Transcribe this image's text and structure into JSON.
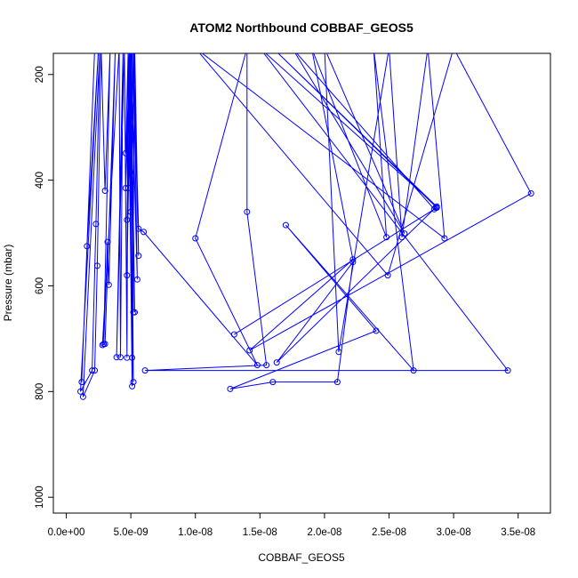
{
  "chart_data": {
    "type": "scatter",
    "connected": true,
    "title": "ATOM2 Northbound COBBAF_GEOS5",
    "xlabel": "COBBAF_GEOS5",
    "ylabel": "Pressure (mbar)",
    "xlim": [
      -1e-09,
      3.75e-08
    ],
    "ylim": [
      1030,
      160
    ],
    "y_reversed": true,
    "x_ticks": [
      0,
      5e-09,
      1e-08,
      1.5e-08,
      2e-08,
      2.5e-08,
      3e-08,
      3.5e-08
    ],
    "x_tick_labels": [
      "0.0e+00",
      "5.0e-09",
      "1.0e-08",
      "1.5e-08",
      "2.0e-08",
      "2.5e-08",
      "3.0e-08",
      "3.5e-08"
    ],
    "y_ticks": [
      200,
      400,
      600,
      800,
      1000
    ],
    "y_tick_labels": [
      "200",
      "400",
      "600",
      "800",
      "1000"
    ],
    "grid": false,
    "legend": "none",
    "colors": {
      "series": "#0000ff",
      "axis": "#000000",
      "text": "#000000",
      "background": "#ffffff"
    },
    "series": [
      {
        "points": [
          [
            1.2e-09,
            782
          ],
          [
            2.2e-09,
            150
          ],
          [
            1.6e-09,
            525
          ],
          [
            2.5e-09,
            150
          ],
          [
            1.1e-09,
            800
          ],
          [
            2e-09,
            760
          ],
          [
            2.3e-09,
            483
          ],
          [
            2.6e-09,
            150
          ],
          [
            1.3e-09,
            810
          ],
          [
            2.2e-09,
            760
          ],
          [
            2.4e-09,
            562
          ],
          [
            2.7e-09,
            150
          ],
          [
            3e-09,
            420
          ],
          [
            3.4e-09,
            150
          ],
          [
            2.9e-09,
            710
          ],
          [
            3.2e-09,
            517
          ],
          [
            3.3e-09,
            598
          ],
          [
            3.8e-09,
            150
          ],
          [
            3e-09,
            710
          ],
          [
            2.8e-09,
            712
          ],
          [
            4.1e-09,
            150
          ],
          [
            4.2e-09,
            735
          ],
          [
            4.4e-09,
            150
          ],
          [
            3.9e-09,
            735
          ],
          [
            4.5e-09,
            150
          ],
          [
            4.7e-09,
            736
          ],
          [
            4.8e-09,
            150
          ],
          [
            5.1e-09,
            736
          ],
          [
            4.9e-09,
            150
          ],
          [
            4.6e-09,
            415
          ],
          [
            5e-09,
            150
          ],
          [
            4.6e-09,
            349
          ],
          [
            4.8e-09,
            150
          ],
          [
            4.7e-09,
            580
          ],
          [
            5e-09,
            150
          ],
          [
            5.2e-09,
            650
          ],
          [
            4.9e-09,
            150
          ],
          [
            5e-09,
            460
          ],
          [
            5.3e-09,
            150
          ],
          [
            5.1e-09,
            790
          ],
          [
            4.8e-09,
            150
          ],
          [
            5.2e-09,
            782
          ],
          [
            5e-09,
            150
          ],
          [
            5.3e-09,
            650
          ],
          [
            4.9e-09,
            150
          ],
          [
            4.7e-09,
            475
          ],
          [
            5.1e-09,
            150
          ],
          [
            5e-09,
            385
          ],
          [
            5.2e-09,
            150
          ],
          [
            5.5e-09,
            588
          ],
          [
            5e-09,
            150
          ],
          [
            4.8e-09,
            415
          ],
          [
            5.3e-09,
            150
          ],
          [
            5.6e-09,
            543
          ],
          [
            5.2e-09,
            150
          ],
          [
            5.6e-09,
            492
          ],
          [
            6e-09,
            498
          ],
          [
            1.48e-08,
            750
          ],
          [
            1e-08,
            510
          ],
          [
            1.4e-08,
            150
          ],
          [
            1.4e-08,
            460
          ],
          [
            1.55e-08,
            750
          ],
          [
            6.1e-09,
            760
          ],
          [
            3.42e-08,
            760
          ],
          [
            1.5e-08,
            150
          ],
          [
            2.87e-08,
            450
          ],
          [
            1.6e-08,
            150
          ],
          [
            2.87e-08,
            452
          ],
          [
            1.3e-08,
            692
          ],
          [
            2.85e-08,
            455
          ],
          [
            1.75e-08,
            150
          ],
          [
            2.62e-08,
            501
          ],
          [
            2e-08,
            150
          ],
          [
            2.11e-08,
            725
          ],
          [
            2.5e-08,
            150
          ],
          [
            2.6e-08,
            508
          ],
          [
            2.8e-08,
            150
          ],
          [
            2.93e-08,
            510
          ],
          [
            1e-08,
            150
          ],
          [
            2.49e-08,
            580
          ],
          [
            3e-08,
            150
          ],
          [
            3.6e-08,
            425
          ],
          [
            1.42e-08,
            722
          ],
          [
            2.22e-08,
            550
          ],
          [
            1.9e-08,
            150
          ],
          [
            2.48e-08,
            508
          ],
          [
            2.38e-08,
            150
          ],
          [
            2.69e-08,
            760
          ],
          [
            1.7e-08,
            485
          ],
          [
            2.4e-08,
            685
          ],
          [
            1.27e-08,
            795
          ],
          [
            1.6e-08,
            782
          ],
          [
            2.1e-08,
            782
          ],
          [
            2.22e-08,
            555
          ],
          [
            1.63e-08,
            745
          ],
          [
            2.86e-08,
            452
          ]
        ]
      }
    ]
  }
}
